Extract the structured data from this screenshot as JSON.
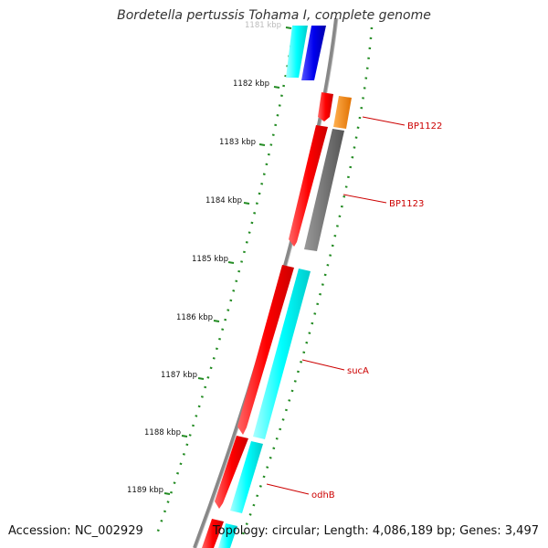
{
  "title": "Bordetella pertussis Tohama I, complete genome",
  "footer": {
    "accession": "Accession: NC_002929",
    "summary": "Topology: circular; Length: 4,086,189 bp; Genes: 3,497"
  },
  "ruler": {
    "ticks": [
      "1181 kbp",
      "1182 kbp",
      "1183 kbp",
      "1184 kbp",
      "1185 kbp",
      "1186 kbp",
      "1187 kbp",
      "1188 kbp",
      "1189 kbp"
    ]
  },
  "genes": [
    {
      "label": "BP1122"
    },
    {
      "label": "BP1123"
    },
    {
      "label": "sucA"
    },
    {
      "label": "odhB"
    }
  ],
  "colors": {
    "backbone": "#888888",
    "forward_feature": "#ff0000",
    "cds_cyan": "#00ffff",
    "cds_blue": "#0000ee",
    "cds_orange": "#ff8c00",
    "cds_gray": "#666666",
    "tick_green": "#228b22",
    "label_red": "#cc0000"
  }
}
